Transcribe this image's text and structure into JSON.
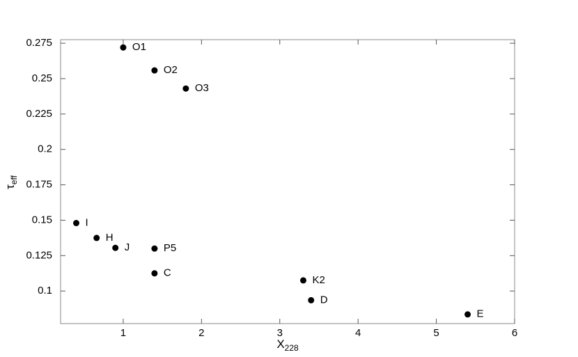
{
  "chart_data": {
    "type": "scatter",
    "x_label": {
      "main": "X",
      "sub": "228"
    },
    "y_label": {
      "main": "τ",
      "sub": "eff"
    },
    "x": [
      1.0,
      1.4,
      1.8,
      0.4,
      0.66,
      0.9,
      1.4,
      1.4,
      3.3,
      3.4,
      5.4
    ],
    "values": [
      0.272,
      0.2558,
      0.243,
      0.148,
      0.1375,
      0.1305,
      0.13,
      0.1125,
      0.1075,
      0.0935,
      0.0835
    ],
    "labels": [
      "O1",
      "O2",
      "O3",
      "I",
      "H",
      "J",
      "P5",
      "C",
      "K2",
      "D",
      "E"
    ],
    "color": "#000000",
    "xlim": [
      0.2,
      6
    ],
    "xticks": [
      1,
      2,
      3,
      4,
      5,
      6
    ],
    "ylim": [
      0.077,
      0.2775
    ],
    "yticks": [
      0.1,
      0.125,
      0.15,
      0.175,
      0.2,
      0.225,
      0.25,
      0.275
    ]
  }
}
